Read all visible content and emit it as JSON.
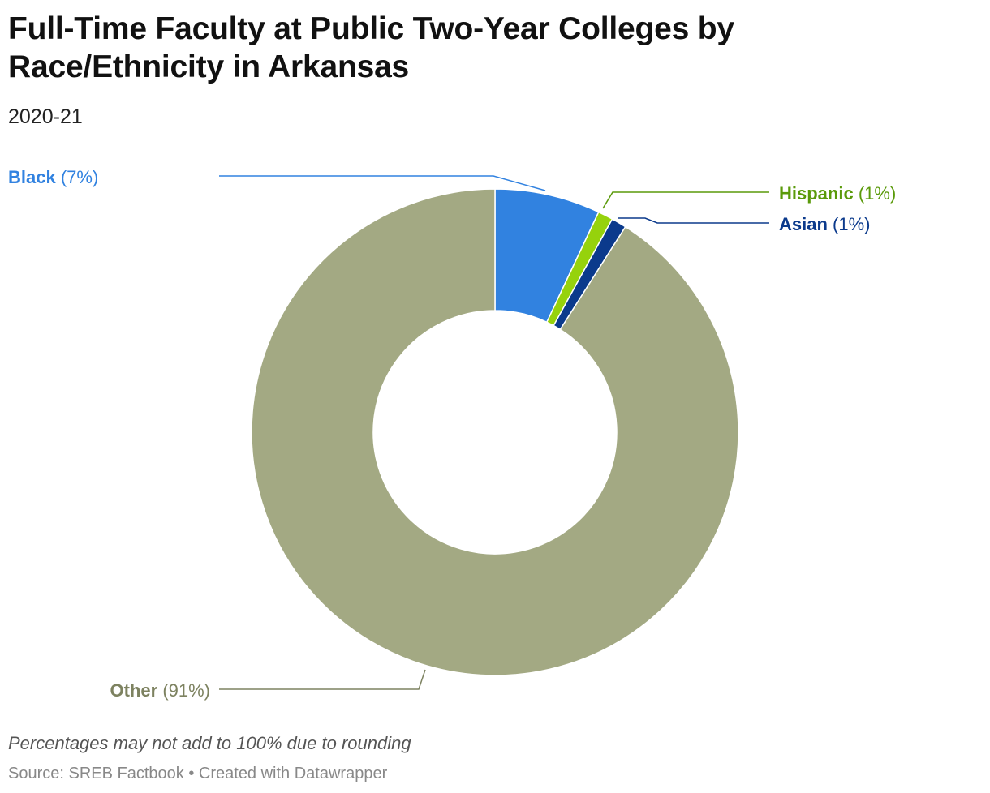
{
  "title": "Full-Time Faculty at Public Two-Year Colleges by Race/Ethnicity in Arkansas",
  "subtitle": "2020-21",
  "note": "Percentages may not add to 100% due to rounding",
  "source": {
    "text": "Source: SREB Factbook",
    "separator": " • ",
    "credit": "Created with Datawrapper"
  },
  "chart_data": {
    "type": "pie",
    "variant": "donut",
    "series": [
      {
        "name": "Black",
        "value": 7,
        "label": "(7%)",
        "color": "#3182e0",
        "label_color": "#3182e0"
      },
      {
        "name": "Hispanic",
        "value": 1,
        "label": "(1%)",
        "color": "#96d20c",
        "label_color": "#5a9a0a"
      },
      {
        "name": "Asian",
        "value": 1,
        "label": "(1%)",
        "color": "#0b3a8c",
        "label_color": "#0b3a8c"
      },
      {
        "name": "Other",
        "value": 91,
        "label": "(91%)",
        "color": "#a3a983",
        "label_color": "#7d8260"
      }
    ]
  }
}
